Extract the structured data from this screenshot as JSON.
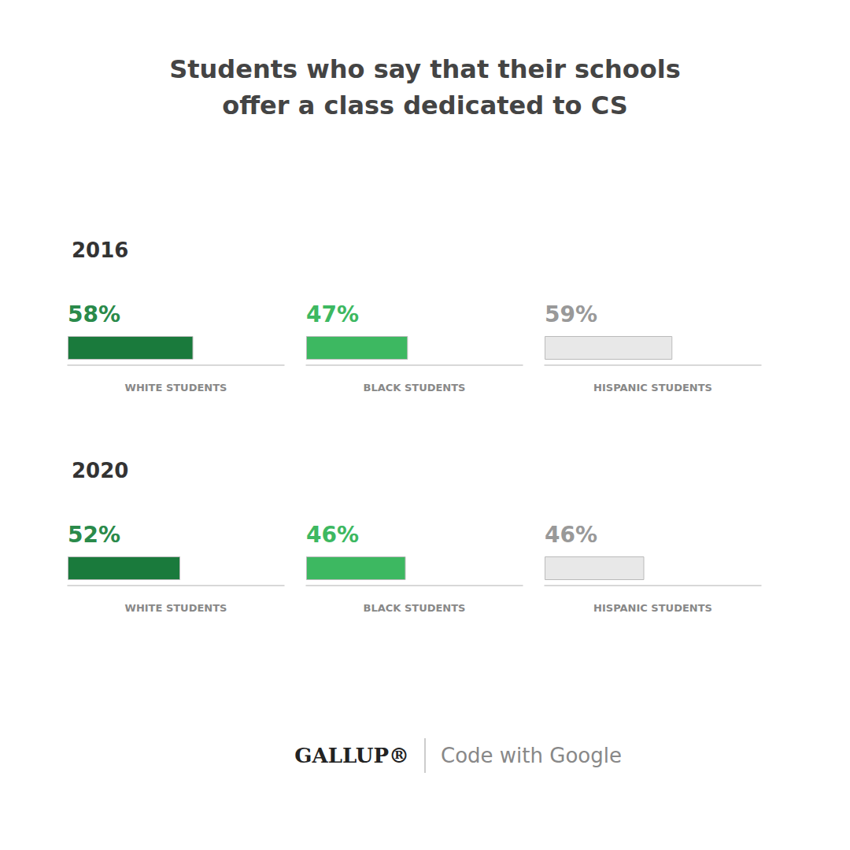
{
  "chart_data": [
    {
      "type": "bar",
      "orientation": "horizontal",
      "title": "Students who say that their schools\noffer a class dedicated to CS",
      "subtitle": "2016",
      "categories": [
        "WHITE STUDENTS",
        "BLACK STUDENTS",
        "HISPANIC STUDENTS"
      ],
      "values": [
        58,
        47,
        59
      ],
      "value_labels": [
        "58%",
        "47%",
        "59%"
      ],
      "colors": [
        "#1a7a3c",
        "#3db861",
        "#e8e8e8"
      ],
      "xlim": [
        0,
        100
      ],
      "grid": false,
      "tick_labels": false,
      "data_labels": true,
      "annotations": [
        "GALLUP®",
        "Code with Google"
      ]
    },
    {
      "type": "bar",
      "orientation": "horizontal",
      "subtitle": "2020",
      "categories": [
        "WHITE STUDENTS",
        "BLACK STUDENTS",
        "HISPANIC STUDENTS"
      ],
      "values": [
        52,
        46,
        46
      ],
      "value_labels": [
        "52%",
        "46%",
        "46%"
      ],
      "colors": [
        "#1a7a3c",
        "#3db861",
        "#e8e8e8"
      ],
      "xlim": [
        0,
        100
      ],
      "grid": false,
      "tick_labels": false,
      "data_labels": true
    }
  ]
}
